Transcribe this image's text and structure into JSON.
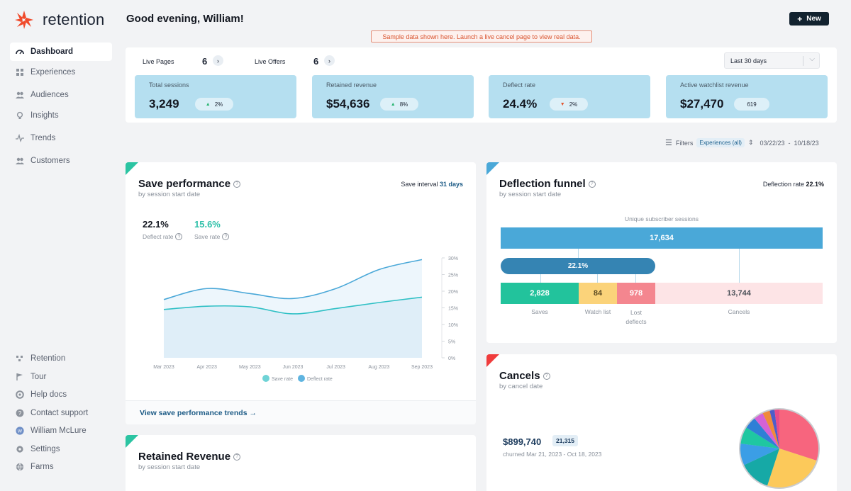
{
  "brand": {
    "name": "retention",
    "accent": "#f04a2b"
  },
  "sidebar": {
    "nav": [
      {
        "label": "Dashboard",
        "icon": "dashboard-icon",
        "active": true
      },
      {
        "label": "Experiences",
        "icon": "experiences-icon"
      },
      {
        "label": "Audiences",
        "icon": "audiences-icon"
      },
      {
        "label": "Insights",
        "icon": "insights-icon"
      },
      {
        "label": "Trends",
        "icon": "trends-icon"
      },
      {
        "label": "Customers",
        "icon": "customers-icon"
      }
    ],
    "footer": [
      {
        "label": "Retention",
        "icon": "retention-icon"
      },
      {
        "label": "Tour",
        "icon": "flag-icon"
      },
      {
        "label": "Help docs",
        "icon": "lifebuoy-icon"
      },
      {
        "label": "Contact support",
        "icon": "question-icon"
      },
      {
        "label": "William McLure",
        "icon": "avatar"
      },
      {
        "label": "Settings",
        "icon": "gear-icon"
      },
      {
        "label": "Farms",
        "icon": "globe-icon"
      }
    ]
  },
  "header": {
    "greeting": "Good evening, William!",
    "new_button": "New",
    "sample_banner": "Sample data shown here. Launch a live cancel page to view real data."
  },
  "stats": {
    "live_pages_label": "Live Pages",
    "live_pages_count": "6",
    "live_offers_label": "Live Offers",
    "live_offers_count": "6",
    "range": "Last 30 days",
    "cards": [
      {
        "label": "Total sessions",
        "value": "3,249",
        "pill": "2%",
        "trend": "up"
      },
      {
        "label": "Retained revenue",
        "value": "$54,636",
        "pill": "8%",
        "trend": "up"
      },
      {
        "label": "Deflect rate",
        "value": "24.4%",
        "pill": "2%",
        "trend": "down"
      },
      {
        "label": "Active watchlist revenue",
        "value": "$27,470",
        "pill": "619",
        "trend": "none"
      }
    ]
  },
  "filters": {
    "label": "Filters",
    "value": "Experiences (all)",
    "date_from": "03/22/23",
    "date_to": "10/18/23"
  },
  "save_performance": {
    "title": "Save performance",
    "subtitle": "by session start date",
    "interval_label": "Save interval",
    "interval_value": "31 days",
    "deflect_rate": "22.1%",
    "deflect_rate_label": "Deflect rate",
    "save_rate": "15.6%",
    "save_rate_label": "Save rate",
    "link": "View save performance trends →"
  },
  "chart_data": {
    "type": "area",
    "x": [
      "Mar 2023",
      "Apr 2023",
      "May 2023",
      "Jun 2023",
      "Jul 2023",
      "Aug 2023",
      "Sep 2023"
    ],
    "series": [
      {
        "name": "Deflect rate",
        "values": [
          17.5,
          20.8,
          19.3,
          17.8,
          20.8,
          26.5,
          29.5
        ],
        "color": "#4aa8d8"
      },
      {
        "name": "Save rate",
        "values": [
          14.5,
          15.5,
          15.3,
          13.2,
          14.8,
          16.6,
          18.2
        ],
        "color": "#2fc0c5"
      }
    ],
    "y_ticks": [
      "0%",
      "5%",
      "10%",
      "15%",
      "20%",
      "25%",
      "30%"
    ],
    "ylim": [
      0,
      30
    ],
    "legend": [
      "Save rate",
      "Deflect rate"
    ],
    "legend_colors": [
      "#6fd3d6",
      "#5fb4e0"
    ]
  },
  "deflection_funnel": {
    "title": "Deflection funnel",
    "subtitle": "by session start date",
    "rate_label": "Deflection rate",
    "rate_value": "22.1%",
    "header": "Unique subscriber sessions",
    "total": "17,634",
    "deflect_pct": "22.1%",
    "segments": [
      {
        "value": "2,828",
        "label": "Saves"
      },
      {
        "value": "84",
        "label": "Watch list"
      },
      {
        "value": "978",
        "label": "Lost deflects"
      },
      {
        "value": "13,744",
        "label": "Cancels"
      }
    ]
  },
  "cancels": {
    "title": "Cancels",
    "subtitle": "by cancel date",
    "amount": "$899,740",
    "count": "21,315",
    "range": "churned Mar 21, 2023 - Oct 18, 2023",
    "slices": [
      {
        "value": 30,
        "color": "#f7657e"
      },
      {
        "value": 25,
        "color": "#fcc95a"
      },
      {
        "value": 13,
        "color": "#16a9a6"
      },
      {
        "value": 9,
        "color": "#3b9ee6"
      },
      {
        "value": 7,
        "color": "#1fc7a1"
      },
      {
        "value": 5,
        "color": "#2f7fd6"
      },
      {
        "value": 4,
        "color": "#d462d6"
      },
      {
        "value": 3,
        "color": "#f08a3a"
      },
      {
        "value": 2,
        "color": "#4e5dc9"
      },
      {
        "value": 2,
        "color": "#e94b8a"
      }
    ]
  },
  "retained_revenue": {
    "title": "Retained Revenue",
    "subtitle": "by session start date"
  }
}
